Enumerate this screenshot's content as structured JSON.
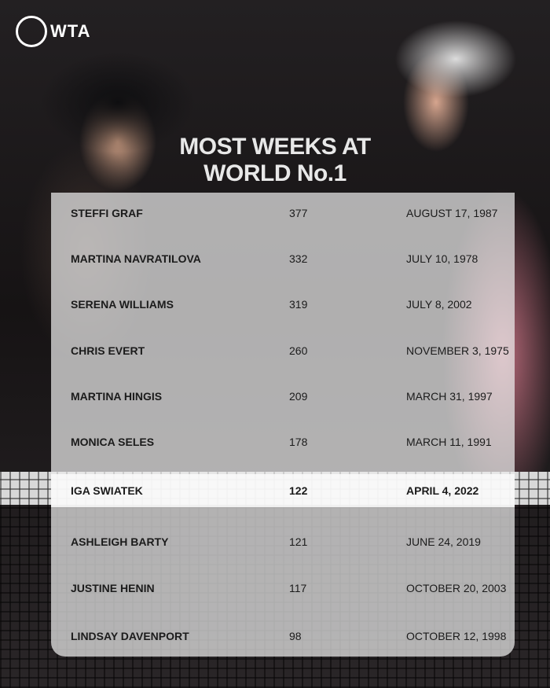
{
  "brand": {
    "logo_text": "WTA"
  },
  "title_lines": [
    "MOST WEEKS AT",
    "WORLD No.1"
  ],
  "rows": [
    {
      "name": "STEFFI GRAF",
      "weeks": "377",
      "date": "AUGUST 17, 1987"
    },
    {
      "name": "MARTINA NAVRATILOVA",
      "weeks": "332",
      "date": "JULY 10, 1978"
    },
    {
      "name": "SERENA WILLIAMS",
      "weeks": "319",
      "date": "JULY 8, 2002"
    },
    {
      "name": "CHRIS EVERT",
      "weeks": "260",
      "date": "NOVEMBER 3, 1975"
    },
    {
      "name": "MARTINA HINGIS",
      "weeks": "209",
      "date": "MARCH 31, 1997"
    },
    {
      "name": "MONICA SELES",
      "weeks": "178",
      "date": "MARCH 11, 1991"
    },
    {
      "name": "IGA SWIATEK",
      "weeks": "122",
      "date": "APRIL 4, 2022",
      "highlighted": true
    },
    {
      "name": "ASHLEIGH BARTY",
      "weeks": "121",
      "date": "JUNE 24, 2019"
    },
    {
      "name": "JUSTINE HENIN",
      "weeks": "117",
      "date": "OCTOBER 20, 2003"
    },
    {
      "name": "LINDSAY DAVENPORT",
      "weeks": "98",
      "date": "OCTOBER 12, 1998"
    }
  ]
}
